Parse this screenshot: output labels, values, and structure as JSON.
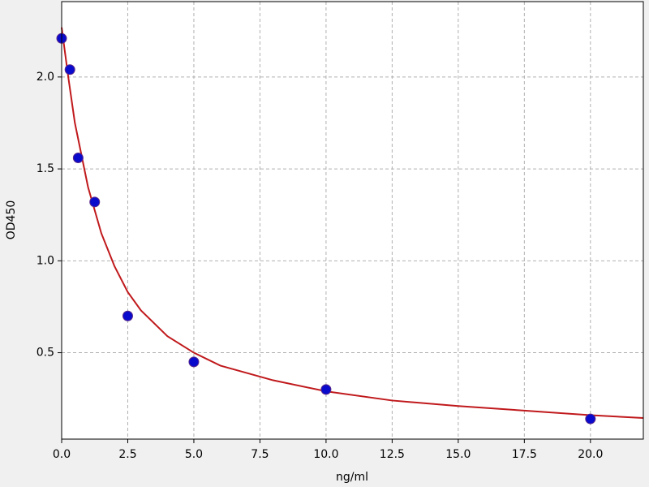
{
  "chart_data": {
    "type": "scatter",
    "xlabel": "ng/ml",
    "ylabel": "OD450",
    "xlim": [
      0,
      22
    ],
    "ylim": [
      0.03,
      2.41
    ],
    "xticks": [
      {
        "value": 0,
        "label": "0.0"
      },
      2.5,
      {
        "value": 5,
        "label": "5.0"
      },
      7.5,
      {
        "value": 10,
        "label": "10.0"
      },
      12.5,
      {
        "value": 15,
        "label": "15.0"
      },
      17.5,
      {
        "value": 20,
        "label": "20.0"
      }
    ],
    "yticks": [
      0.5,
      {
        "value": 1,
        "label": "1.0"
      },
      1.5,
      {
        "value": 2,
        "label": "2.0"
      }
    ],
    "grid": true,
    "series": [
      {
        "type": "scatter",
        "color": "#0a0acc",
        "x": [
          0,
          0.3125,
          0.625,
          1.25,
          2.5,
          5,
          10,
          20
        ],
        "values": [
          2.21,
          2.04,
          1.56,
          1.32,
          0.7,
          0.45,
          0.3,
          0.14
        ]
      },
      {
        "type": "line",
        "color": "#c0191c",
        "x": [
          0,
          0.25,
          0.5,
          1,
          1.5,
          2,
          2.5,
          3,
          4,
          5,
          6,
          8,
          10,
          12.5,
          15,
          17.5,
          20,
          22
        ],
        "values": [
          2.27,
          2.0,
          1.75,
          1.4,
          1.15,
          0.97,
          0.83,
          0.73,
          0.59,
          0.5,
          0.43,
          0.35,
          0.29,
          0.24,
          0.21,
          0.185,
          0.16,
          0.145
        ]
      }
    ]
  }
}
